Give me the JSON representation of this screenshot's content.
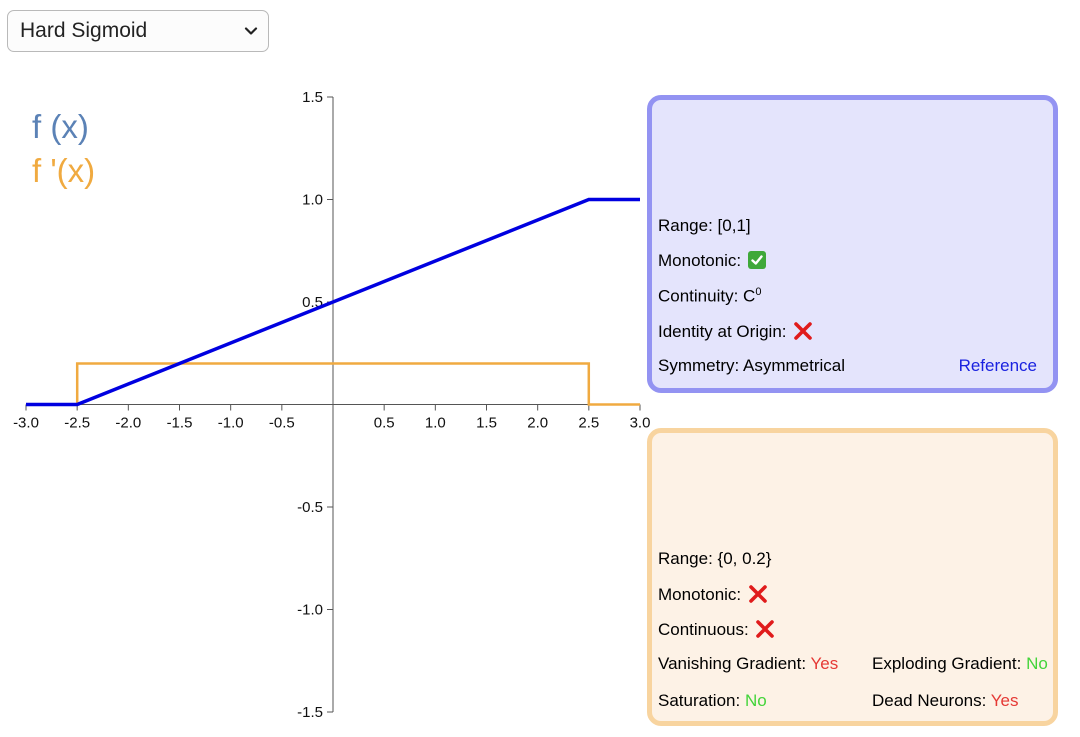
{
  "selector": {
    "selected": "Hard Sigmoid"
  },
  "legend": {
    "f": "f (x)",
    "fp": "f '(x)"
  },
  "f_panel": {
    "range_label": "Range: [0,1]",
    "monotonic_label": "Monotonic:",
    "monotonic_icon": "check-icon",
    "continuity_label": "Continuity: C",
    "continuity_sup": "0",
    "identity_label": "Identity at Origin:",
    "identity_icon": "cross-icon",
    "symmetry_label": "Symmetry: Asymmetrical",
    "reference_label": "Reference"
  },
  "fp_panel": {
    "range_label": "Range: {0, 0.2}",
    "monotonic_label": "Monotonic:",
    "monotonic_icon": "cross-icon",
    "continuous_label": "Continuous:",
    "continuous_icon": "cross-icon",
    "vanishing_label": "Vanishing Gradient:",
    "vanishing_value": "Yes",
    "exploding_label": "Exploding Gradient:",
    "exploding_value": "No",
    "saturation_label": "Saturation:",
    "saturation_value": "No",
    "dead_label": "Dead Neurons:",
    "dead_value": "Yes"
  },
  "colors": {
    "f_line": "#0000e0",
    "fp_line": "#f0aa40"
  },
  "chart_data": {
    "type": "line",
    "xlim": [
      -3.0,
      3.0
    ],
    "ylim": [
      -1.5,
      1.5
    ],
    "x_ticks": [
      "-3.0",
      "-2.5",
      "-2.0",
      "-1.5",
      "-1.0",
      "-0.5",
      "0.5",
      "1.0",
      "1.5",
      "2.0",
      "2.5",
      "3.0"
    ],
    "y_ticks": [
      "1.5",
      "1.0",
      "0.5",
      "-0.5",
      "-1.0",
      "-1.5"
    ],
    "series": [
      {
        "name": "f (x)",
        "points": [
          [
            -3.0,
            0
          ],
          [
            -2.5,
            0
          ],
          [
            2.5,
            1
          ],
          [
            3.0,
            1
          ]
        ]
      },
      {
        "name": "f '(x)",
        "points": [
          [
            -3.0,
            0
          ],
          [
            -2.5,
            0
          ],
          [
            -2.5,
            0.2
          ],
          [
            2.5,
            0.2
          ],
          [
            2.5,
            0
          ],
          [
            3.0,
            0
          ]
        ]
      }
    ]
  }
}
